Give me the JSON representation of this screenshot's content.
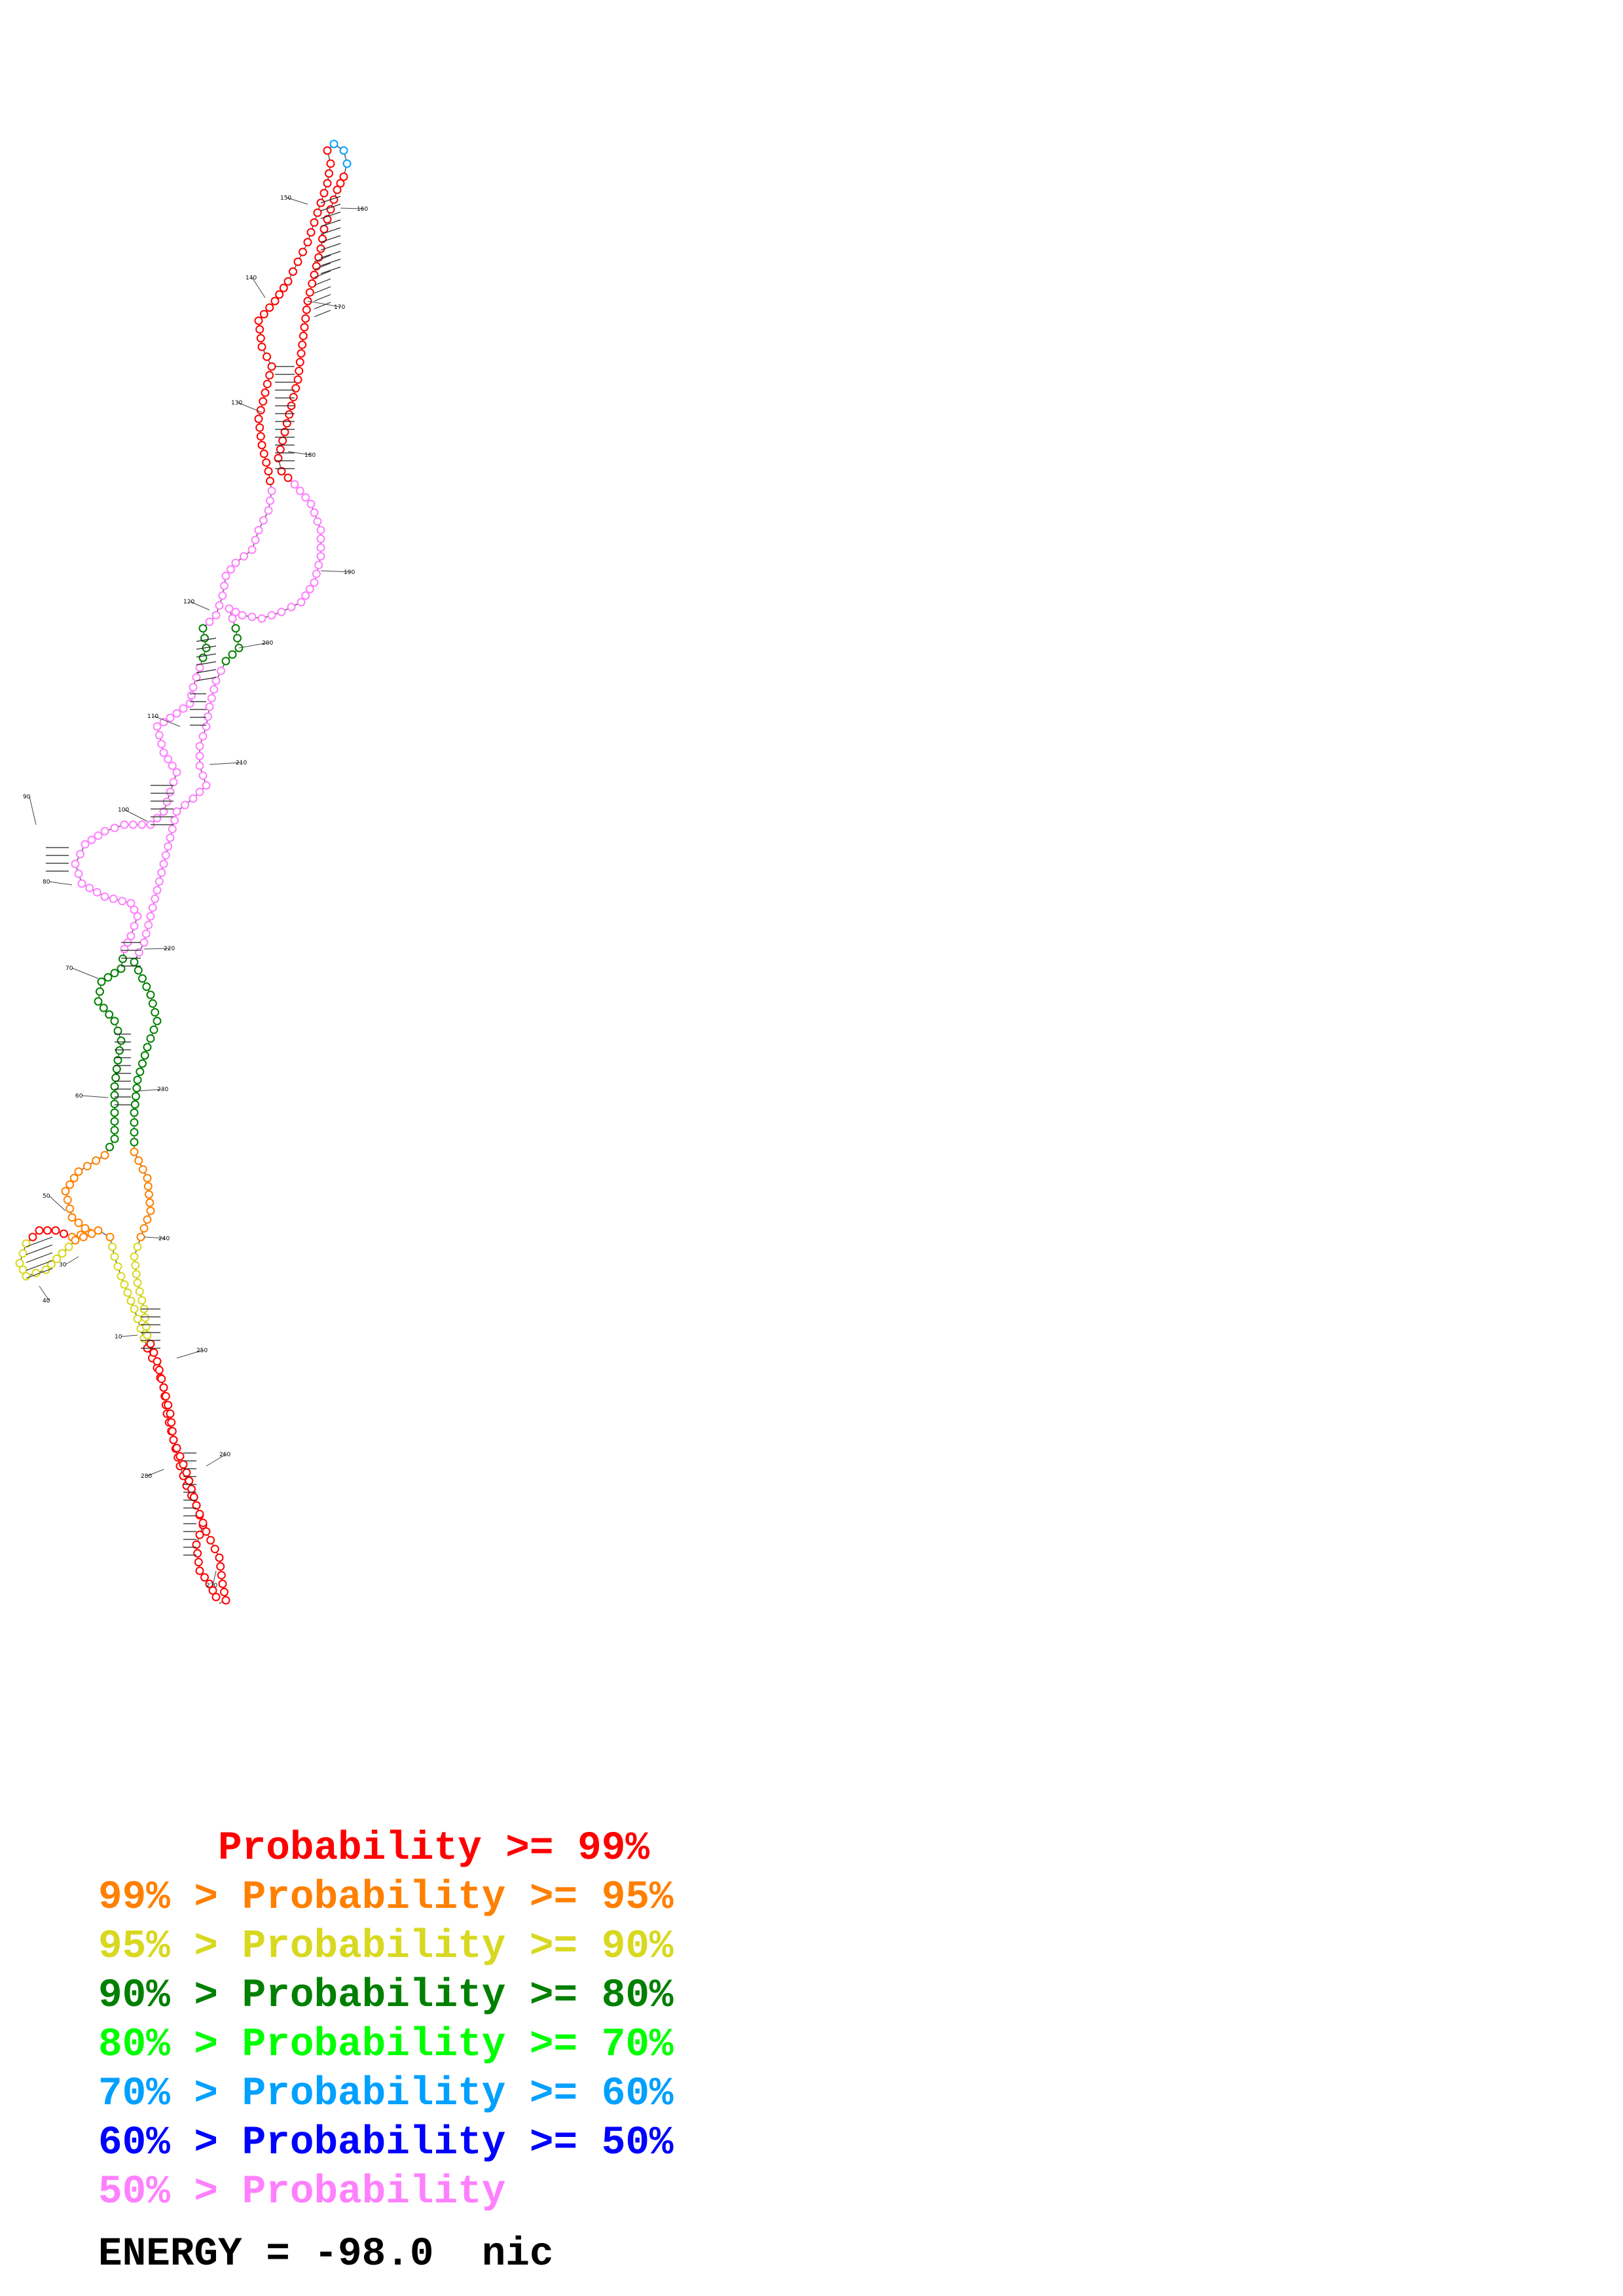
{
  "colors": {
    "p99": "#ff0000",
    "p95": "#ff8000",
    "p90": "#d8d820",
    "p80": "#008000",
    "p70": "#00ff00",
    "p60": "#00a0ff",
    "p50": "#0000ff",
    "plt50": "#ff80ff"
  },
  "legend": [
    {
      "text": "     Probability >= 99%",
      "color_key": "p99"
    },
    {
      "text": "99% > Probability >= 95%",
      "color_key": "p95"
    },
    {
      "text": "95% > Probability >= 90%",
      "color_key": "p90"
    },
    {
      "text": "90% > Probability >= 80%",
      "color_key": "p80"
    },
    {
      "text": "80% > Probability >= 70%",
      "color_key": "p70"
    },
    {
      "text": "70% > Probability >= 60%",
      "color_key": "p60"
    },
    {
      "text": "60% > Probability >= 50%",
      "color_key": "p50"
    },
    {
      "text": "50% > Probability",
      "color_key": "plt50"
    }
  ],
  "energy_text": "ENERGY = -98.0  nic",
  "position_labels": [
    "10",
    "30",
    "40",
    "50",
    "60",
    "70",
    "80",
    "90",
    "100",
    "110",
    "120",
    "130",
    "140",
    "150",
    "160",
    "170",
    "180",
    "190",
    "200",
    "210",
    "220",
    "230",
    "240",
    "250",
    "260",
    "270",
    "280"
  ]
}
